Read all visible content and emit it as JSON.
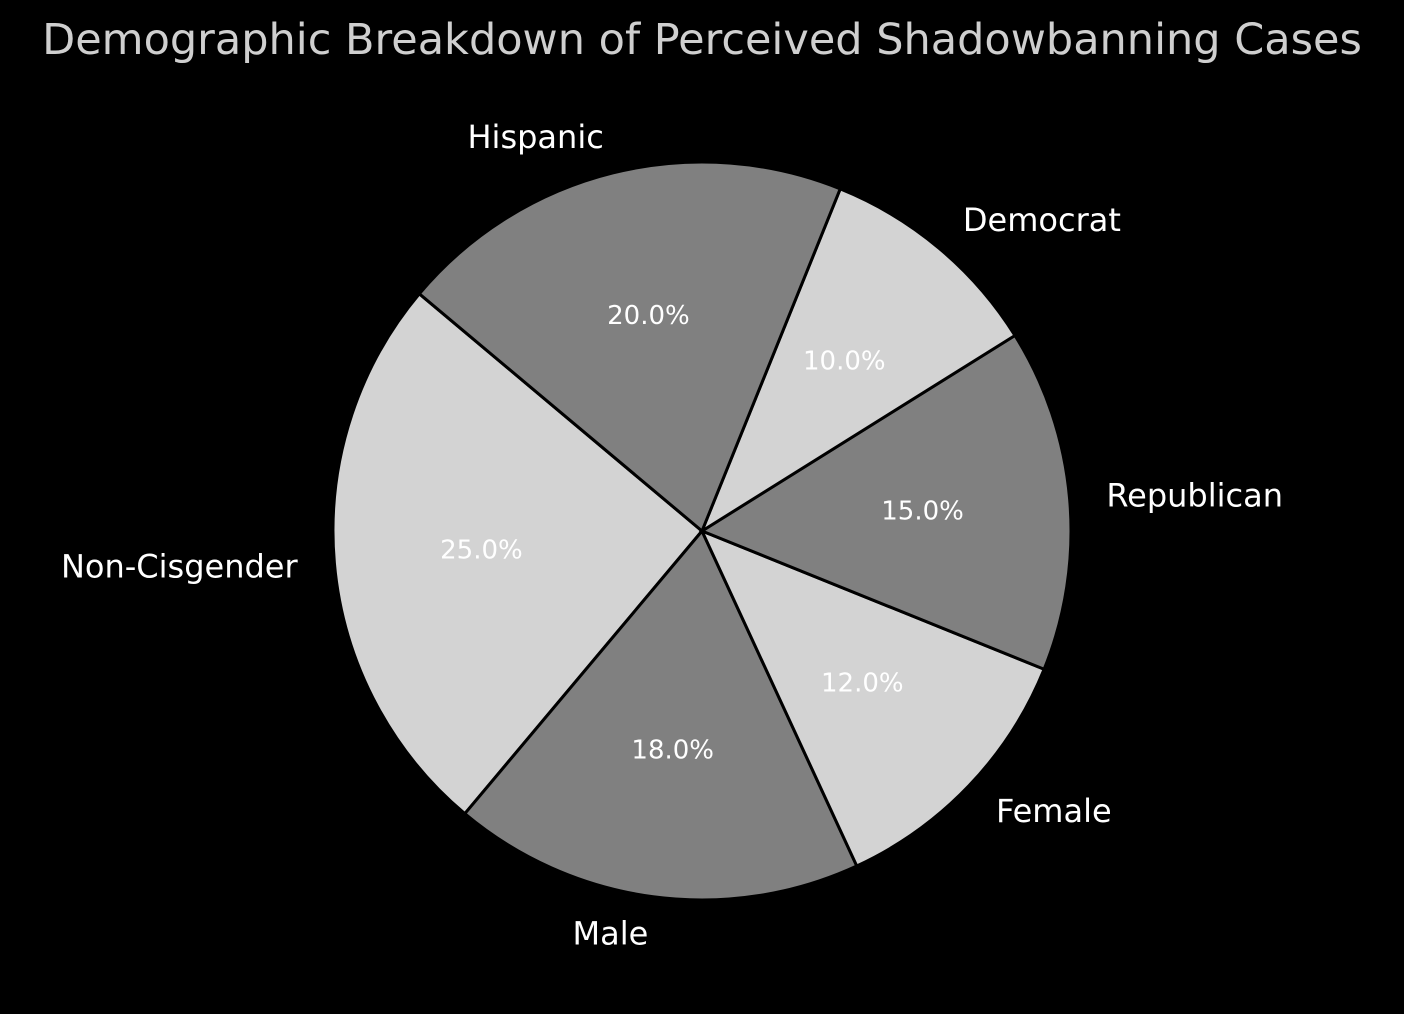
{
  "chart_data": {
    "type": "pie",
    "title": "Demographic Breakdown of Perceived Shadowbanning Cases",
    "start_angle_deg": 140,
    "direction": "counterclockwise",
    "slices": [
      {
        "label": "Non-Cisgender",
        "value": 25.0,
        "pct_label": "25.0%",
        "color": "#d3d3d3"
      },
      {
        "label": "Male",
        "value": 18.0,
        "pct_label": "18.0%",
        "color": "#808080"
      },
      {
        "label": "Female",
        "value": 12.0,
        "pct_label": "12.0%",
        "color": "#d3d3d3"
      },
      {
        "label": "Republican",
        "value": 15.0,
        "pct_label": "15.0%",
        "color": "#808080"
      },
      {
        "label": "Democrat",
        "value": 10.0,
        "pct_label": "10.0%",
        "color": "#d3d3d3"
      },
      {
        "label": "Hispanic",
        "value": 20.0,
        "pct_label": "20.0%",
        "color": "#808080"
      }
    ],
    "colors": {
      "background": "#000000",
      "title": "#cfcfcf",
      "labels": "#ffffff",
      "wedge_edge": "#000000"
    }
  }
}
